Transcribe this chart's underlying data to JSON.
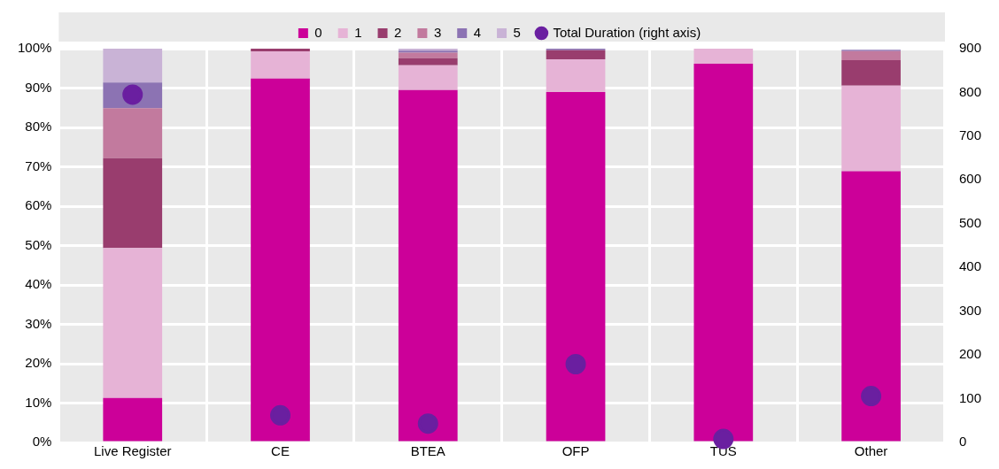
{
  "chart_data": {
    "type": "bar",
    "stacked": true,
    "categories": [
      "Live Register",
      "CE",
      "BTEA",
      "OFP",
      "TUS",
      "Other"
    ],
    "series": [
      {
        "name": "0",
        "color": "#cc0099",
        "values": [
          11.3,
          92.4,
          89.5,
          89.0,
          96.2,
          68.9
        ]
      },
      {
        "name": "1",
        "color": "#e6b3d6",
        "values": [
          38.1,
          6.9,
          6.3,
          8.3,
          3.8,
          21.7
        ]
      },
      {
        "name": "2",
        "color": "#993d6e",
        "values": [
          22.8,
          0.7,
          1.8,
          2.3,
          0,
          6.5
        ]
      },
      {
        "name": "3",
        "color": "#c27a9e",
        "values": [
          12.7,
          0,
          1.4,
          0,
          0,
          2.3
        ]
      },
      {
        "name": "4",
        "color": "#8c73b3",
        "values": [
          6.5,
          0,
          0.5,
          0.4,
          0,
          0.3
        ]
      },
      {
        "name": "5",
        "color": "#c9b3d6",
        "values": [
          8.6,
          0,
          0.5,
          0,
          0,
          null
        ]
      },
      {
        "name": "Total Duration (right axis)",
        "type": "scatter",
        "axis": "y2",
        "color": "#6a1fa0",
        "marker": "circle",
        "values": [
          795,
          62,
          43,
          179,
          8,
          106
        ]
      }
    ],
    "ylim": [
      0,
      100
    ],
    "yticks": [
      {
        "value": 0,
        "label": "0%"
      },
      {
        "value": 10,
        "label": "10%"
      },
      {
        "value": 20,
        "label": "20%"
      },
      {
        "value": 30,
        "label": "30%"
      },
      {
        "value": 40,
        "label": "40%"
      },
      {
        "value": 50,
        "label": "50%"
      },
      {
        "value": 60,
        "label": "60%"
      },
      {
        "value": 70,
        "label": "70%"
      },
      {
        "value": 80,
        "label": "80%"
      },
      {
        "value": 90,
        "label": "90%"
      },
      {
        "value": 100,
        "label": "100%"
      }
    ],
    "y2lim": [
      0,
      900
    ],
    "y2ticks": [
      0,
      100,
      200,
      300,
      400,
      500,
      600,
      700,
      800,
      900
    ],
    "grid": true,
    "legend": "top"
  }
}
